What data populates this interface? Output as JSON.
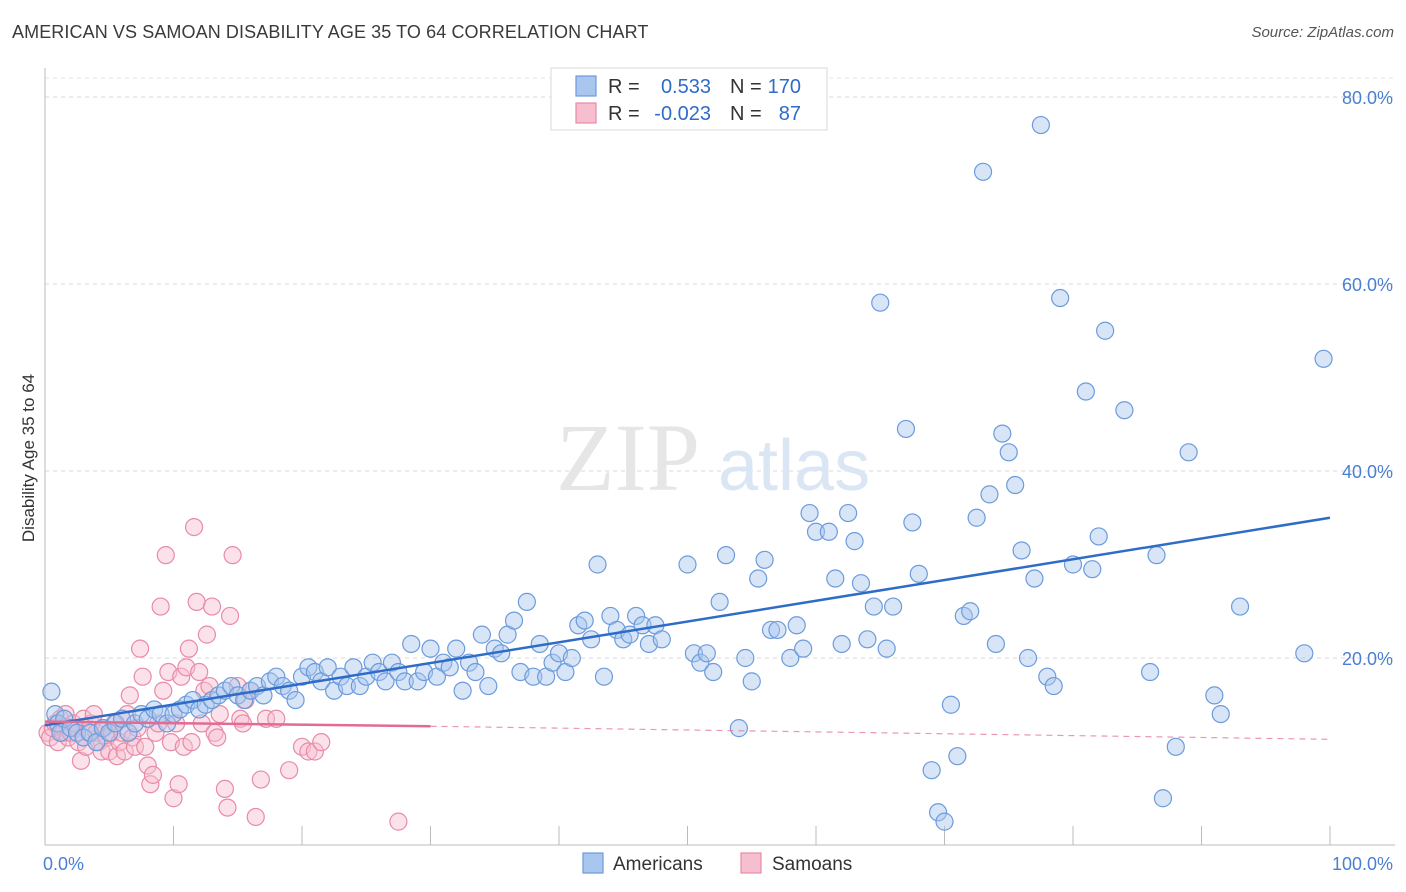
{
  "header": {
    "title": "AMERICAN VS SAMOAN DISABILITY AGE 35 TO 64 CORRELATION CHART",
    "source": "Source: ZipAtlas.com"
  },
  "watermark": {
    "part1": "ZIP",
    "part2": "atlas"
  },
  "legend": {
    "rows": [
      {
        "r_label": "R =",
        "r_value": "0.533",
        "n_label": "N =",
        "n_value": "170",
        "color": "#a9c6ee",
        "stroke": "#6c9bdc"
      },
      {
        "r_label": "R =",
        "r_value": "-0.023",
        "n_label": "N =",
        "n_value": "87",
        "color": "#f6bfd0",
        "stroke": "#e98aa8"
      }
    ]
  },
  "bottom_legend": {
    "americans": "Americans",
    "samoans": "Samoans"
  },
  "chart_data": {
    "type": "scatter",
    "title": "AMERICAN VS SAMOAN DISABILITY AGE 35 TO 64 CORRELATION CHART",
    "xlabel": "",
    "ylabel": "Disability Age 35 to 64",
    "xlim": [
      0,
      100
    ],
    "ylim": [
      0,
      80
    ],
    "x_tick_labels": [
      "0.0%",
      "100.0%"
    ],
    "y_tick_labels": [
      "20.0%",
      "40.0%",
      "60.0%",
      "80.0%"
    ],
    "y_ticks": [
      20,
      40,
      60,
      80
    ],
    "grid": true,
    "legend_position": "top-center",
    "series": [
      {
        "name": "Americans",
        "color": "#6c9bdc",
        "fill": "#a9c6ee",
        "trend": {
          "x": [
            0,
            100
          ],
          "y": [
            12.8,
            35
          ],
          "color": "#2f6cc7"
        },
        "points": [
          [
            0.5,
            16.4
          ],
          [
            0.8,
            14
          ],
          [
            1,
            13
          ],
          [
            1.2,
            12
          ],
          [
            1.5,
            13.5
          ],
          [
            2,
            12.5
          ],
          [
            2.5,
            12
          ],
          [
            3,
            11.5
          ],
          [
            3.5,
            12
          ],
          [
            4,
            11
          ],
          [
            4.5,
            12.5
          ],
          [
            5,
            12
          ],
          [
            5.5,
            13
          ],
          [
            6,
            13.5
          ],
          [
            6.5,
            12
          ],
          [
            7,
            13
          ],
          [
            7.5,
            14
          ],
          [
            8,
            13.5
          ],
          [
            8.5,
            14.5
          ],
          [
            9,
            14
          ],
          [
            9.5,
            13
          ],
          [
            10,
            14
          ],
          [
            10.5,
            14.5
          ],
          [
            11,
            15
          ],
          [
            11.5,
            15.5
          ],
          [
            12,
            14.5
          ],
          [
            12.5,
            15
          ],
          [
            13,
            15.5
          ],
          [
            13.5,
            16
          ],
          [
            14,
            16.5
          ],
          [
            14.5,
            17
          ],
          [
            15,
            16
          ],
          [
            15.5,
            15.5
          ],
          [
            16,
            16.5
          ],
          [
            16.5,
            17
          ],
          [
            17,
            16
          ],
          [
            17.5,
            17.5
          ],
          [
            18,
            18
          ],
          [
            18.5,
            17
          ],
          [
            19,
            16.5
          ],
          [
            19.5,
            15.5
          ],
          [
            20,
            18
          ],
          [
            20.5,
            19
          ],
          [
            21,
            18.5
          ],
          [
            21.5,
            17.5
          ],
          [
            22,
            19
          ],
          [
            22.5,
            16.5
          ],
          [
            23,
            18
          ],
          [
            23.5,
            17
          ],
          [
            24,
            19
          ],
          [
            24.5,
            17
          ],
          [
            25,
            18
          ],
          [
            25.5,
            19.5
          ],
          [
            26,
            18.5
          ],
          [
            26.5,
            17.5
          ],
          [
            27,
            19.5
          ],
          [
            27.5,
            18.5
          ],
          [
            28,
            17.5
          ],
          [
            28.5,
            21.5
          ],
          [
            29,
            17.5
          ],
          [
            29.5,
            18.5
          ],
          [
            30,
            21
          ],
          [
            30.5,
            18
          ],
          [
            31,
            19.5
          ],
          [
            31.5,
            19
          ],
          [
            32,
            21
          ],
          [
            32.5,
            16.5
          ],
          [
            33,
            19.5
          ],
          [
            33.5,
            18.5
          ],
          [
            34,
            22.5
          ],
          [
            34.5,
            17
          ],
          [
            35,
            21
          ],
          [
            35.5,
            20.5
          ],
          [
            36,
            22.5
          ],
          [
            36.5,
            24
          ],
          [
            37,
            18.5
          ],
          [
            37.5,
            26
          ],
          [
            38,
            18
          ],
          [
            38.5,
            21.5
          ],
          [
            39,
            18
          ],
          [
            39.5,
            19.5
          ],
          [
            40,
            20.5
          ],
          [
            40.5,
            18.5
          ],
          [
            41,
            20
          ],
          [
            41.5,
            23.5
          ],
          [
            42,
            24
          ],
          [
            42.5,
            22
          ],
          [
            43,
            30
          ],
          [
            43.5,
            18
          ],
          [
            44,
            24.5
          ],
          [
            44.5,
            23
          ],
          [
            45,
            22
          ],
          [
            45.5,
            22.5
          ],
          [
            46,
            24.5
          ],
          [
            46.5,
            23.5
          ],
          [
            47,
            21.5
          ],
          [
            47.5,
            23.5
          ],
          [
            48,
            22
          ],
          [
            50,
            30
          ],
          [
            50.5,
            20.5
          ],
          [
            51,
            19.5
          ],
          [
            51.5,
            20.5
          ],
          [
            52,
            18.5
          ],
          [
            52.5,
            26
          ],
          [
            53,
            31
          ],
          [
            54,
            12.5
          ],
          [
            54.5,
            20
          ],
          [
            55,
            17.5
          ],
          [
            55.5,
            28.5
          ],
          [
            56,
            30.5
          ],
          [
            56.5,
            23
          ],
          [
            57,
            23
          ],
          [
            58,
            20
          ],
          [
            58.5,
            23.5
          ],
          [
            59,
            21
          ],
          [
            59.5,
            35.5
          ],
          [
            60,
            33.5
          ],
          [
            61,
            33.5
          ],
          [
            61.5,
            28.5
          ],
          [
            62,
            21.5
          ],
          [
            62.5,
            35.5
          ],
          [
            63,
            32.5
          ],
          [
            63.5,
            28
          ],
          [
            64,
            22
          ],
          [
            64.5,
            25.5
          ],
          [
            65,
            58
          ],
          [
            65.5,
            21
          ],
          [
            66,
            25.5
          ],
          [
            67,
            44.5
          ],
          [
            67.5,
            34.5
          ],
          [
            68,
            29
          ],
          [
            69,
            8
          ],
          [
            69.5,
            3.5
          ],
          [
            70,
            2.5
          ],
          [
            70.5,
            15
          ],
          [
            71,
            9.5
          ],
          [
            71.5,
            24.5
          ],
          [
            72,
            25
          ],
          [
            72.5,
            35
          ],
          [
            73,
            72
          ],
          [
            73.5,
            37.5
          ],
          [
            74,
            21.5
          ],
          [
            74.5,
            44
          ],
          [
            75,
            42
          ],
          [
            75.5,
            38.5
          ],
          [
            76,
            31.5
          ],
          [
            76.5,
            20
          ],
          [
            77,
            28.5
          ],
          [
            77.5,
            77
          ],
          [
            78,
            18
          ],
          [
            78.5,
            17
          ],
          [
            79,
            58.5
          ],
          [
            80,
            30
          ],
          [
            81,
            48.5
          ],
          [
            81.5,
            29.5
          ],
          [
            82,
            33
          ],
          [
            82.5,
            55
          ],
          [
            84,
            46.5
          ],
          [
            86,
            18.5
          ],
          [
            86.5,
            31
          ],
          [
            87,
            5
          ],
          [
            88,
            10.5
          ],
          [
            89,
            42
          ],
          [
            91,
            16
          ],
          [
            91.5,
            14
          ],
          [
            93,
            25.5
          ],
          [
            98,
            20.5
          ],
          [
            99.5,
            52
          ]
        ]
      },
      {
        "name": "Samoans",
        "color": "#e98aa8",
        "fill": "#f6bfd0",
        "trend": {
          "x": [
            0,
            30
          ],
          "y": [
            13.2,
            12.7
          ],
          "dashed_to": [
            100,
            11.3
          ],
          "color": "#e26b93"
        },
        "points": [
          [
            0.2,
            12
          ],
          [
            0.4,
            11.5
          ],
          [
            0.6,
            12.5
          ],
          [
            0.8,
            13
          ],
          [
            1,
            11
          ],
          [
            1.2,
            13.5
          ],
          [
            1.4,
            12
          ],
          [
            1.6,
            14
          ],
          [
            1.8,
            11.5
          ],
          [
            2,
            12
          ],
          [
            2.2,
            13
          ],
          [
            2.4,
            12.5
          ],
          [
            2.6,
            11
          ],
          [
            2.8,
            9
          ],
          [
            3,
            13.5
          ],
          [
            3.2,
            10.5
          ],
          [
            3.4,
            12
          ],
          [
            3.6,
            13
          ],
          [
            3.8,
            14
          ],
          [
            4,
            12
          ],
          [
            4.2,
            11
          ],
          [
            4.4,
            10
          ],
          [
            4.6,
            12.5
          ],
          [
            4.8,
            11.5
          ],
          [
            5,
            10
          ],
          [
            5.2,
            12
          ],
          [
            5.4,
            13
          ],
          [
            5.6,
            9.5
          ],
          [
            5.8,
            11
          ],
          [
            6,
            12
          ],
          [
            6.2,
            10
          ],
          [
            6.4,
            14
          ],
          [
            6.6,
            16
          ],
          [
            6.8,
            11.5
          ],
          [
            7,
            10.5
          ],
          [
            7.2,
            12.5
          ],
          [
            7.4,
            21
          ],
          [
            7.6,
            18
          ],
          [
            7.8,
            10.5
          ],
          [
            8,
            8.5
          ],
          [
            8.2,
            6.5
          ],
          [
            8.4,
            7.5
          ],
          [
            8.6,
            12
          ],
          [
            8.8,
            13
          ],
          [
            9,
            25.5
          ],
          [
            9.2,
            16.5
          ],
          [
            9.4,
            31
          ],
          [
            9.6,
            18.5
          ],
          [
            9.8,
            11
          ],
          [
            10,
            5
          ],
          [
            10.2,
            13
          ],
          [
            10.4,
            6.5
          ],
          [
            10.6,
            18
          ],
          [
            10.8,
            10.5
          ],
          [
            11,
            19
          ],
          [
            11.2,
            21
          ],
          [
            11.4,
            11
          ],
          [
            11.6,
            34
          ],
          [
            11.8,
            26
          ],
          [
            12,
            18.5
          ],
          [
            12.2,
            13
          ],
          [
            12.4,
            16.5
          ],
          [
            12.6,
            22.5
          ],
          [
            12.8,
            17
          ],
          [
            13,
            25.5
          ],
          [
            13.2,
            12
          ],
          [
            13.4,
            11.5
          ],
          [
            13.6,
            14
          ],
          [
            14,
            6
          ],
          [
            14.2,
            4
          ],
          [
            14.4,
            24.5
          ],
          [
            14.6,
            31
          ],
          [
            15,
            17
          ],
          [
            15.2,
            13.5
          ],
          [
            15.4,
            13
          ],
          [
            15.6,
            15.5
          ],
          [
            16,
            16.5
          ],
          [
            16.4,
            3
          ],
          [
            16.8,
            7
          ],
          [
            17.2,
            13.5
          ],
          [
            18,
            13.5
          ],
          [
            19,
            8
          ],
          [
            20,
            10.5
          ],
          [
            20.5,
            10
          ],
          [
            21,
            10
          ],
          [
            21.5,
            11
          ],
          [
            27.5,
            2.5
          ]
        ]
      }
    ]
  }
}
